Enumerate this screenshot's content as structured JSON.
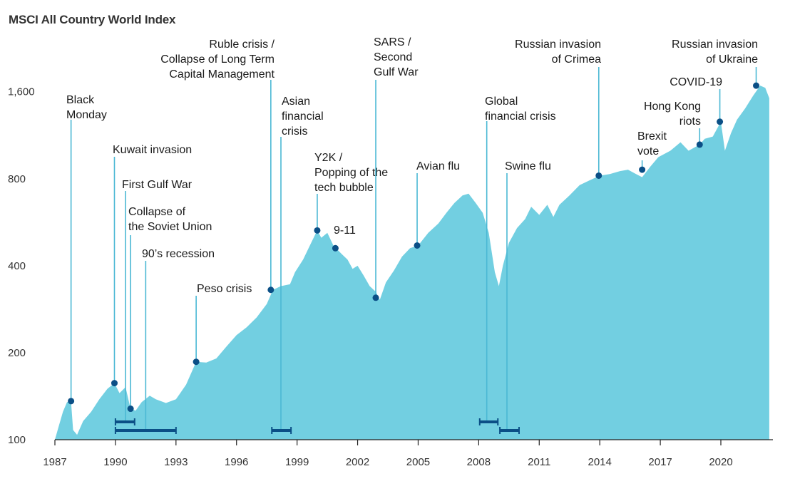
{
  "title": "MSCI All Country World Index",
  "chart_data": {
    "type": "area",
    "title": "MSCI All Country World Index",
    "xlabel": "",
    "ylabel": "",
    "y_scale": "log",
    "ylim": [
      100,
      1800
    ],
    "xlim": [
      1987,
      2022.5
    ],
    "grid": false,
    "y_ticks": [
      {
        "value": 100,
        "label": "100"
      },
      {
        "value": 200,
        "label": "200"
      },
      {
        "value": 400,
        "label": "400"
      },
      {
        "value": 800,
        "label": "800"
      },
      {
        "value": 1600,
        "label": "1,600"
      }
    ],
    "x_ticks": [
      {
        "value": 1987,
        "label": "1987"
      },
      {
        "value": 1990,
        "label": "1990"
      },
      {
        "value": 1993,
        "label": "1993"
      },
      {
        "value": 1996,
        "label": "1996"
      },
      {
        "value": 1999,
        "label": "1999"
      },
      {
        "value": 2002,
        "label": "2002"
      },
      {
        "value": 2005,
        "label": "2005"
      },
      {
        "value": 2008,
        "label": "2008"
      },
      {
        "value": 2011,
        "label": "2011"
      },
      {
        "value": 2014,
        "label": "2014"
      },
      {
        "value": 2017,
        "label": "2017"
      },
      {
        "value": 2020,
        "label": "2020"
      }
    ],
    "series": [
      {
        "x": [
          1987.0,
          1987.2,
          1987.4,
          1987.6,
          1987.8,
          1987.9,
          1988.1,
          1988.4,
          1988.8,
          1989.2,
          1989.6,
          1989.95,
          1990.2,
          1990.5,
          1990.75,
          1991.0,
          1991.3,
          1991.7,
          1992.0,
          1992.5,
          1993.0,
          1993.5,
          1994.0,
          1994.5,
          1995.0,
          1995.5,
          1996.0,
          1996.5,
          1997.0,
          1997.5,
          1997.8,
          1998.2,
          1998.65,
          1998.9,
          1999.3,
          1999.7,
          2000.0,
          2000.2,
          2000.5,
          2000.8,
          2001.2,
          2001.5,
          2001.75,
          2002.0,
          2002.3,
          2002.6,
          2002.9,
          2003.1,
          2003.4,
          2003.8,
          2004.2,
          2004.6,
          2005.0,
          2005.5,
          2006.0,
          2006.4,
          2006.8,
          2007.2,
          2007.5,
          2007.85,
          2008.2,
          2008.5,
          2008.8,
          2009.0,
          2009.2,
          2009.5,
          2009.9,
          2010.3,
          2010.6,
          2011.0,
          2011.4,
          2011.7,
          2012.0,
          2012.5,
          2013.0,
          2013.5,
          2014.0,
          2014.5,
          2015.0,
          2015.4,
          2015.8,
          2016.1,
          2016.5,
          2016.9,
          2017.5,
          2018.0,
          2018.4,
          2018.95,
          2019.2,
          2019.6,
          2020.0,
          2020.2,
          2020.5,
          2020.8,
          2021.2,
          2021.6,
          2021.95,
          2022.2,
          2022.4
        ],
        "values": [
          100,
          112,
          125,
          135,
          136,
          108,
          104,
          116,
          125,
          138,
          150,
          157,
          145,
          152,
          128,
          126,
          135,
          142,
          138,
          134,
          138,
          155,
          186,
          185,
          191,
          210,
          230,
          245,
          265,
          295,
          330,
          340,
          345,
          380,
          420,
          480,
          530,
          500,
          520,
          470,
          440,
          420,
          390,
          400,
          370,
          340,
          325,
          305,
          350,
          385,
          430,
          460,
          470,
          520,
          560,
          610,
          660,
          700,
          710,
          660,
          610,
          520,
          380,
          340,
          400,
          480,
          540,
          580,
          640,
          600,
          650,
          590,
          650,
          700,
          760,
          790,
          820,
          830,
          850,
          860,
          830,
          810,
          880,
          950,
          1000,
          1070,
          1000,
          1050,
          1100,
          1120,
          1260,
          1000,
          1150,
          1280,
          1400,
          1550,
          1680,
          1650,
          1520
        ]
      }
    ],
    "events": [
      {
        "label": [
          "Black",
          "Monday"
        ],
        "x": 1987.8,
        "y": 136
      },
      {
        "label": [
          "Kuwait invasion"
        ],
        "x": 1989.95,
        "y": 157
      },
      {
        "label": [
          "First Gulf War"
        ],
        "x": 1990.5,
        "y": 0
      },
      {
        "label": [
          "Collapse of",
          "the Soviet Union"
        ],
        "x": 1990.75,
        "y": 128
      },
      {
        "label": [
          "90’s recession"
        ],
        "x": 1991.5,
        "y": 0
      },
      {
        "label": [
          "Peso crisis"
        ],
        "x": 1994.0,
        "y": 186
      },
      {
        "label": [
          "Ruble crisis /",
          "Collapse of Long Term",
          "Capital Management"
        ],
        "x": 1997.7,
        "y": 330
      },
      {
        "label": [
          "Asian",
          "financial",
          "crisis"
        ],
        "x": 1998.2,
        "y": 0
      },
      {
        "label": [
          "Y2K /",
          "Popping of the",
          "tech bubble"
        ],
        "x": 2000.0,
        "y": 530
      },
      {
        "label": [
          "9-11"
        ],
        "x": 2000.9,
        "y": 460
      },
      {
        "label": [
          "SARS /",
          "Second",
          "Gulf War"
        ],
        "x": 2002.9,
        "y": 310
      },
      {
        "label": [
          "Avian flu"
        ],
        "x": 2004.95,
        "y": 470
      },
      {
        "label": [
          "Global",
          "financial crisis"
        ],
        "x": 2008.4,
        "y": 0
      },
      {
        "label": [
          "Swine flu"
        ],
        "x": 2009.4,
        "y": 0
      },
      {
        "label": [
          "Russian invasion",
          "of Crimea"
        ],
        "x": 2013.95,
        "y": 820
      },
      {
        "label": [
          "Brexit",
          "vote"
        ],
        "x": 2016.1,
        "y": 860
      },
      {
        "label": [
          "Hong Kong",
          "riots"
        ],
        "x": 2018.95,
        "y": 1050
      },
      {
        "label": [
          "COVID-19"
        ],
        "x": 2019.95,
        "y": 1260
      },
      {
        "label": [
          "Russian invasion",
          "of Ukraine"
        ],
        "x": 2021.75,
        "y": 1680
      }
    ],
    "recession_bars": [
      {
        "x0": 1990.0,
        "x1": 1990.95
      },
      {
        "x0": 1990.0,
        "x1": 1993.0
      },
      {
        "x0": 1997.75,
        "x1": 1998.7
      },
      {
        "x0": 2008.05,
        "x1": 2008.95
      },
      {
        "x0": 2009.05,
        "x1": 2010.0
      }
    ],
    "colors": {
      "area": "#72cfe1",
      "marker": "#0b4f86",
      "leader": "#4bb8d4",
      "axis": "#222222"
    }
  }
}
